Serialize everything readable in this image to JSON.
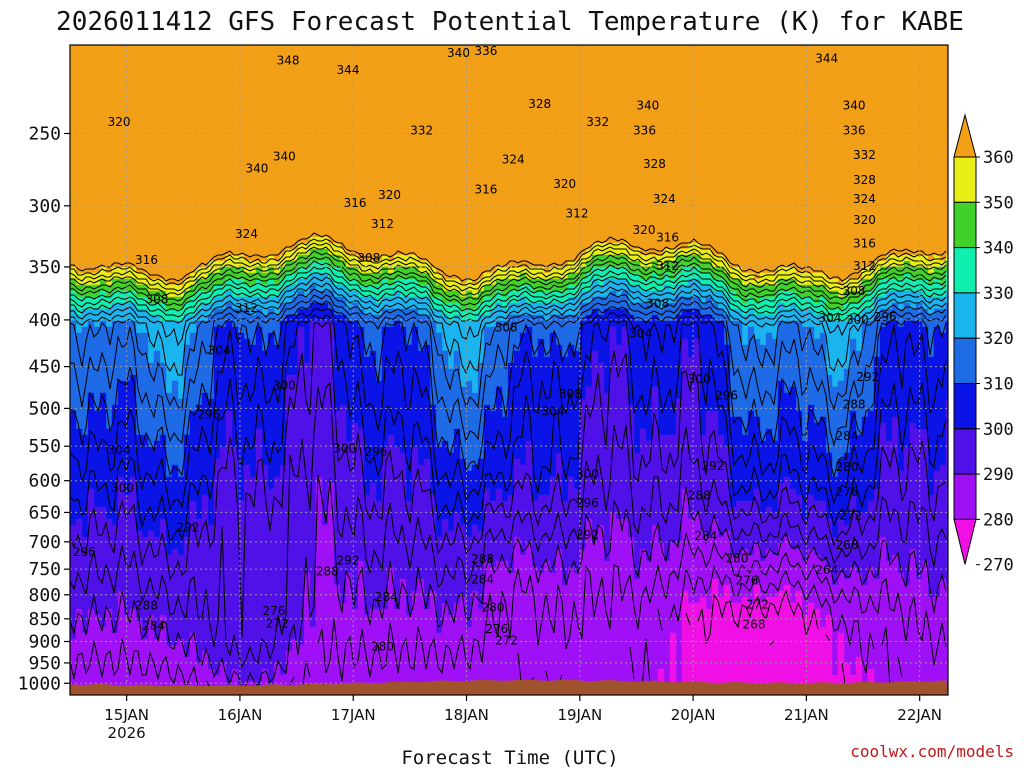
{
  "chart_data": {
    "type": "contour",
    "title": "2026011412 GFS Forecast Potential Temperature (K) for KABE",
    "xlabel": "Forecast Time (UTC)",
    "ylabel": "",
    "credit": "coolwx.com/models",
    "x_ticks": [
      {
        "label": "15JAN",
        "sub": "2026",
        "hour": 12
      },
      {
        "label": "16JAN",
        "sub": "",
        "hour": 36
      },
      {
        "label": "17JAN",
        "sub": "",
        "hour": 60
      },
      {
        "label": "18JAN",
        "sub": "",
        "hour": 84
      },
      {
        "label": "19JAN",
        "sub": "",
        "hour": 108
      },
      {
        "label": "20JAN",
        "sub": "",
        "hour": 132
      },
      {
        "label": "21JAN",
        "sub": "",
        "hour": 156
      },
      {
        "label": "22JAN",
        "sub": "",
        "hour": 180
      }
    ],
    "y_ticks": [
      250,
      300,
      350,
      400,
      450,
      500,
      550,
      600,
      650,
      700,
      750,
      800,
      850,
      900,
      950,
      1000
    ],
    "y_axis": "pressure (hPa), log scale, decreasing upward",
    "ylim": [
      1030,
      200
    ],
    "colorbar": {
      "levels": [
        270,
        280,
        290,
        300,
        310,
        320,
        330,
        340,
        350,
        360
      ],
      "colors": [
        "#f010e6",
        "#a010f6",
        "#5010e8",
        "#0a14e6",
        "#1e6be6",
        "#1ab4ee",
        "#10eeb0",
        "#40d22a",
        "#e8ee16",
        "#f2a018"
      ]
    },
    "contour_interval": 4,
    "ground_color": "#a0522d",
    "contour_labels": [
      {
        "value": "320",
        "hour": 10.4,
        "p": 243
      },
      {
        "value": "348",
        "hour": 46.2,
        "p": 208
      },
      {
        "value": "344",
        "hour": 58.9,
        "p": 213
      },
      {
        "value": "340",
        "hour": 82.3,
        "p": 204
      },
      {
        "value": "336",
        "hour": 88.1,
        "p": 203
      },
      {
        "value": "340",
        "hour": 45.4,
        "p": 265
      },
      {
        "value": "332",
        "hour": 74.5,
        "p": 248
      },
      {
        "value": "328",
        "hour": 99.5,
        "p": 232
      },
      {
        "value": "332",
        "hour": 111.8,
        "p": 243
      },
      {
        "value": "340",
        "hour": 122.4,
        "p": 233
      },
      {
        "value": "336",
        "hour": 121.7,
        "p": 248
      },
      {
        "value": "344",
        "hour": 160.3,
        "p": 207
      },
      {
        "value": "340",
        "hour": 166.1,
        "p": 233
      },
      {
        "value": "336",
        "hour": 166.1,
        "p": 248
      },
      {
        "value": "332",
        "hour": 168.3,
        "p": 264
      },
      {
        "value": "328",
        "hour": 168.3,
        "p": 281
      },
      {
        "value": "324",
        "hour": 168.3,
        "p": 295
      },
      {
        "value": "320",
        "hour": 168.3,
        "p": 311
      },
      {
        "value": "316",
        "hour": 168.3,
        "p": 330
      },
      {
        "value": "312",
        "hour": 168.3,
        "p": 349
      },
      {
        "value": "308",
        "hour": 166.1,
        "p": 372
      },
      {
        "value": "304",
        "hour": 161.0,
        "p": 398
      },
      {
        "value": "300",
        "hour": 166.8,
        "p": 400
      },
      {
        "value": "296",
        "hour": 172.7,
        "p": 397
      },
      {
        "value": "292",
        "hour": 169.0,
        "p": 462
      },
      {
        "value": "288",
        "hour": 166.1,
        "p": 495
      },
      {
        "value": "284",
        "hour": 164.6,
        "p": 536
      },
      {
        "value": "280",
        "hour": 164.6,
        "p": 580
      },
      {
        "value": "276",
        "hour": 164.6,
        "p": 617
      },
      {
        "value": "272",
        "hour": 165.4,
        "p": 655
      },
      {
        "value": "268",
        "hour": 164.6,
        "p": 706
      },
      {
        "value": "264",
        "hour": 160.3,
        "p": 752
      },
      {
        "value": "324",
        "hour": 93.9,
        "p": 267
      },
      {
        "value": "316",
        "hour": 88.1,
        "p": 288
      },
      {
        "value": "320",
        "hour": 104.8,
        "p": 284
      },
      {
        "value": "328",
        "hour": 123.8,
        "p": 270
      },
      {
        "value": "324",
        "hour": 125.9,
        "p": 295
      },
      {
        "value": "320",
        "hour": 121.6,
        "p": 319
      },
      {
        "value": "316",
        "hour": 126.6,
        "p": 325
      },
      {
        "value": "312",
        "hour": 126.6,
        "p": 349
      },
      {
        "value": "308",
        "hour": 124.5,
        "p": 384
      },
      {
        "value": "304",
        "hour": 120.9,
        "p": 414
      },
      {
        "value": "300",
        "hour": 133.3,
        "p": 464
      },
      {
        "value": "296",
        "hour": 139.1,
        "p": 484
      },
      {
        "value": "292",
        "hour": 136.2,
        "p": 578
      },
      {
        "value": "288",
        "hour": 133.3,
        "p": 623
      },
      {
        "value": "284",
        "hour": 134.7,
        "p": 690
      },
      {
        "value": "280",
        "hour": 141.3,
        "p": 730
      },
      {
        "value": "276",
        "hour": 143.4,
        "p": 772
      },
      {
        "value": "272",
        "hour": 145.6,
        "p": 820
      },
      {
        "value": "268",
        "hour": 144.9,
        "p": 862
      },
      {
        "value": "340",
        "hour": 39.6,
        "p": 273
      },
      {
        "value": "316",
        "hour": 60.4,
        "p": 298
      },
      {
        "value": "320",
        "hour": 67.7,
        "p": 292
      },
      {
        "value": "312",
        "hour": 66.2,
        "p": 314
      },
      {
        "value": "312",
        "hour": 107.4,
        "p": 306
      },
      {
        "value": "324",
        "hour": 37.4,
        "p": 322
      },
      {
        "value": "308",
        "hour": 63.3,
        "p": 342
      },
      {
        "value": "316",
        "hour": 16.2,
        "p": 344
      },
      {
        "value": "308",
        "hour": 18.4,
        "p": 380
      },
      {
        "value": "312",
        "hour": 37.4,
        "p": 388
      },
      {
        "value": "308",
        "hour": 92.4,
        "p": 408
      },
      {
        "value": "304",
        "hour": 31.6,
        "p": 432
      },
      {
        "value": "300",
        "hour": 45.4,
        "p": 472
      },
      {
        "value": "296",
        "hour": 29.4,
        "p": 508
      },
      {
        "value": "308",
        "hour": 106.0,
        "p": 482
      },
      {
        "value": "304",
        "hour": 102.3,
        "p": 504
      },
      {
        "value": "304",
        "hour": 10.4,
        "p": 555
      },
      {
        "value": "300",
        "hour": 58.2,
        "p": 553
      },
      {
        "value": "296",
        "hour": 64.8,
        "p": 558
      },
      {
        "value": "300",
        "hour": 11.1,
        "p": 611
      },
      {
        "value": "300",
        "hour": 109.6,
        "p": 590
      },
      {
        "value": "296",
        "hour": 109.6,
        "p": 635
      },
      {
        "value": "292",
        "hour": 25.0,
        "p": 675
      },
      {
        "value": "296",
        "hour": 3.0,
        "p": 718
      },
      {
        "value": "292",
        "hour": 109.6,
        "p": 688
      },
      {
        "value": "292",
        "hour": 58.9,
        "p": 734
      },
      {
        "value": "288",
        "hour": 54.5,
        "p": 754
      },
      {
        "value": "288",
        "hour": 87.4,
        "p": 731
      },
      {
        "value": "284",
        "hour": 87.4,
        "p": 770
      },
      {
        "value": "284",
        "hour": 67.0,
        "p": 804
      },
      {
        "value": "280",
        "hour": 89.6,
        "p": 826
      },
      {
        "value": "288",
        "hour": 16.2,
        "p": 822
      },
      {
        "value": "284",
        "hour": 17.7,
        "p": 866
      },
      {
        "value": "276",
        "hour": 43.2,
        "p": 833
      },
      {
        "value": "272",
        "hour": 43.9,
        "p": 860
      },
      {
        "value": "276",
        "hour": 90.4,
        "p": 872
      },
      {
        "value": "272",
        "hour": 92.5,
        "p": 898
      },
      {
        "value": "280",
        "hour": 66.2,
        "p": 911
      }
    ]
  }
}
